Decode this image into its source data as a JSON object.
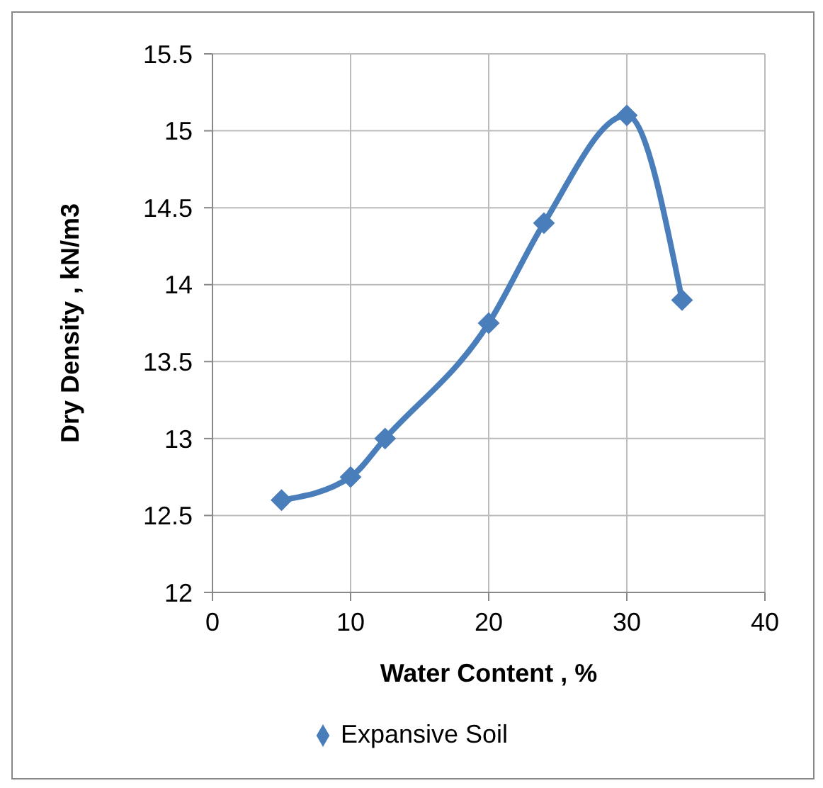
{
  "chart_data": {
    "type": "line",
    "xlabel": "Water Content , %",
    "ylabel": "Dry Density , kN/m3",
    "x": [
      5,
      10,
      12.5,
      20,
      24,
      30,
      34
    ],
    "series": [
      {
        "name": "Expansive Soil",
        "color": "#4a7ebb",
        "values": [
          12.6,
          12.75,
          13,
          13.75,
          14.4,
          15.1,
          13.9
        ]
      }
    ],
    "xlim": [
      0,
      40
    ],
    "xticks": [
      0,
      10,
      20,
      30,
      40
    ],
    "ylim": [
      12,
      15.5
    ],
    "yticks": [
      12,
      12.5,
      13,
      13.5,
      14,
      14.5,
      15,
      15.5
    ],
    "grid": true,
    "legend": "bottom",
    "marker": "diamond",
    "line_style": "solid"
  }
}
